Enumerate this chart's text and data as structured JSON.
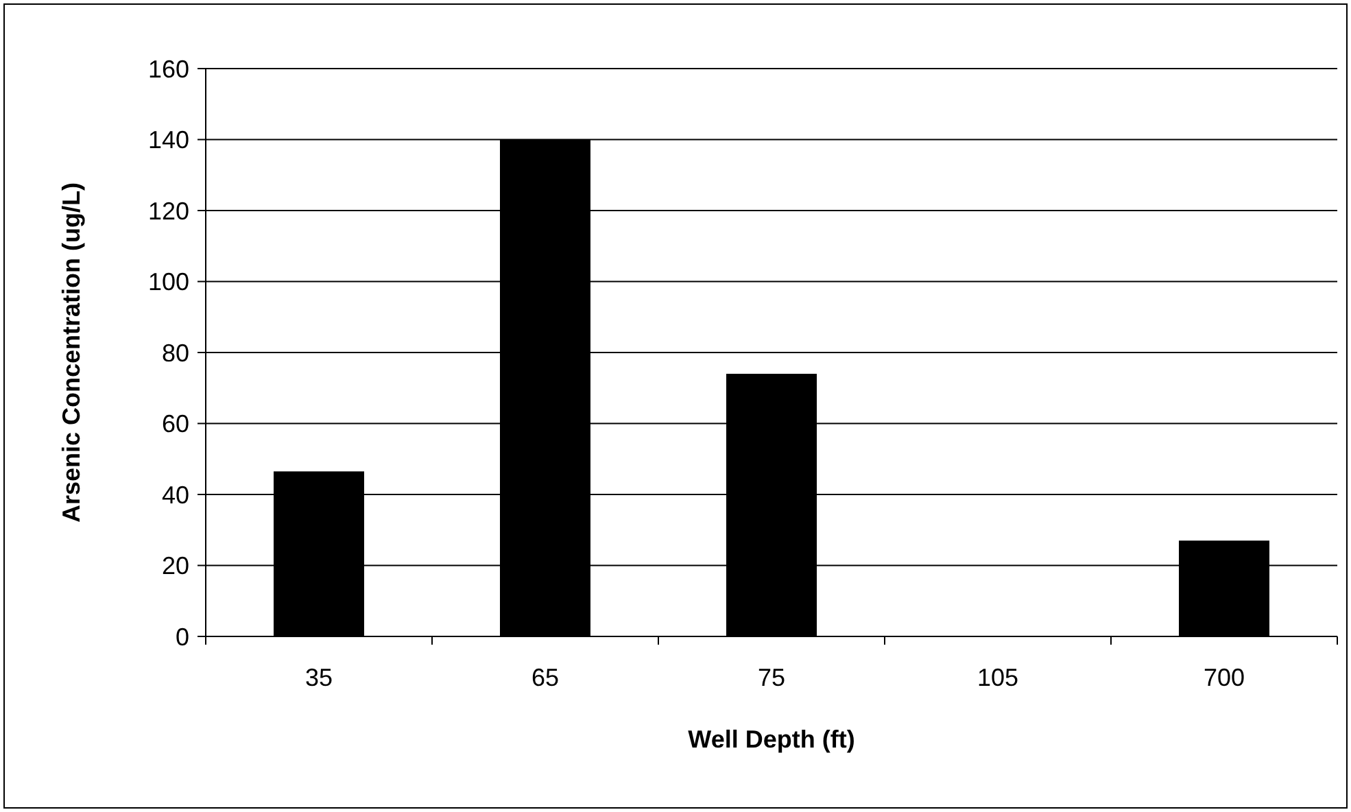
{
  "chart_data": {
    "type": "bar",
    "xlabel": "Well Depth (ft)",
    "ylabel": "Arsenic Concentration (ug/L)",
    "categories": [
      "35",
      "65",
      "75",
      "105",
      "700"
    ],
    "values": [
      46.5,
      140,
      74,
      0,
      27
    ],
    "color": "#000000",
    "ylim": [
      0,
      160
    ],
    "yticks": [
      0,
      20,
      40,
      60,
      80,
      100,
      120,
      140,
      160
    ],
    "grid": "y"
  }
}
